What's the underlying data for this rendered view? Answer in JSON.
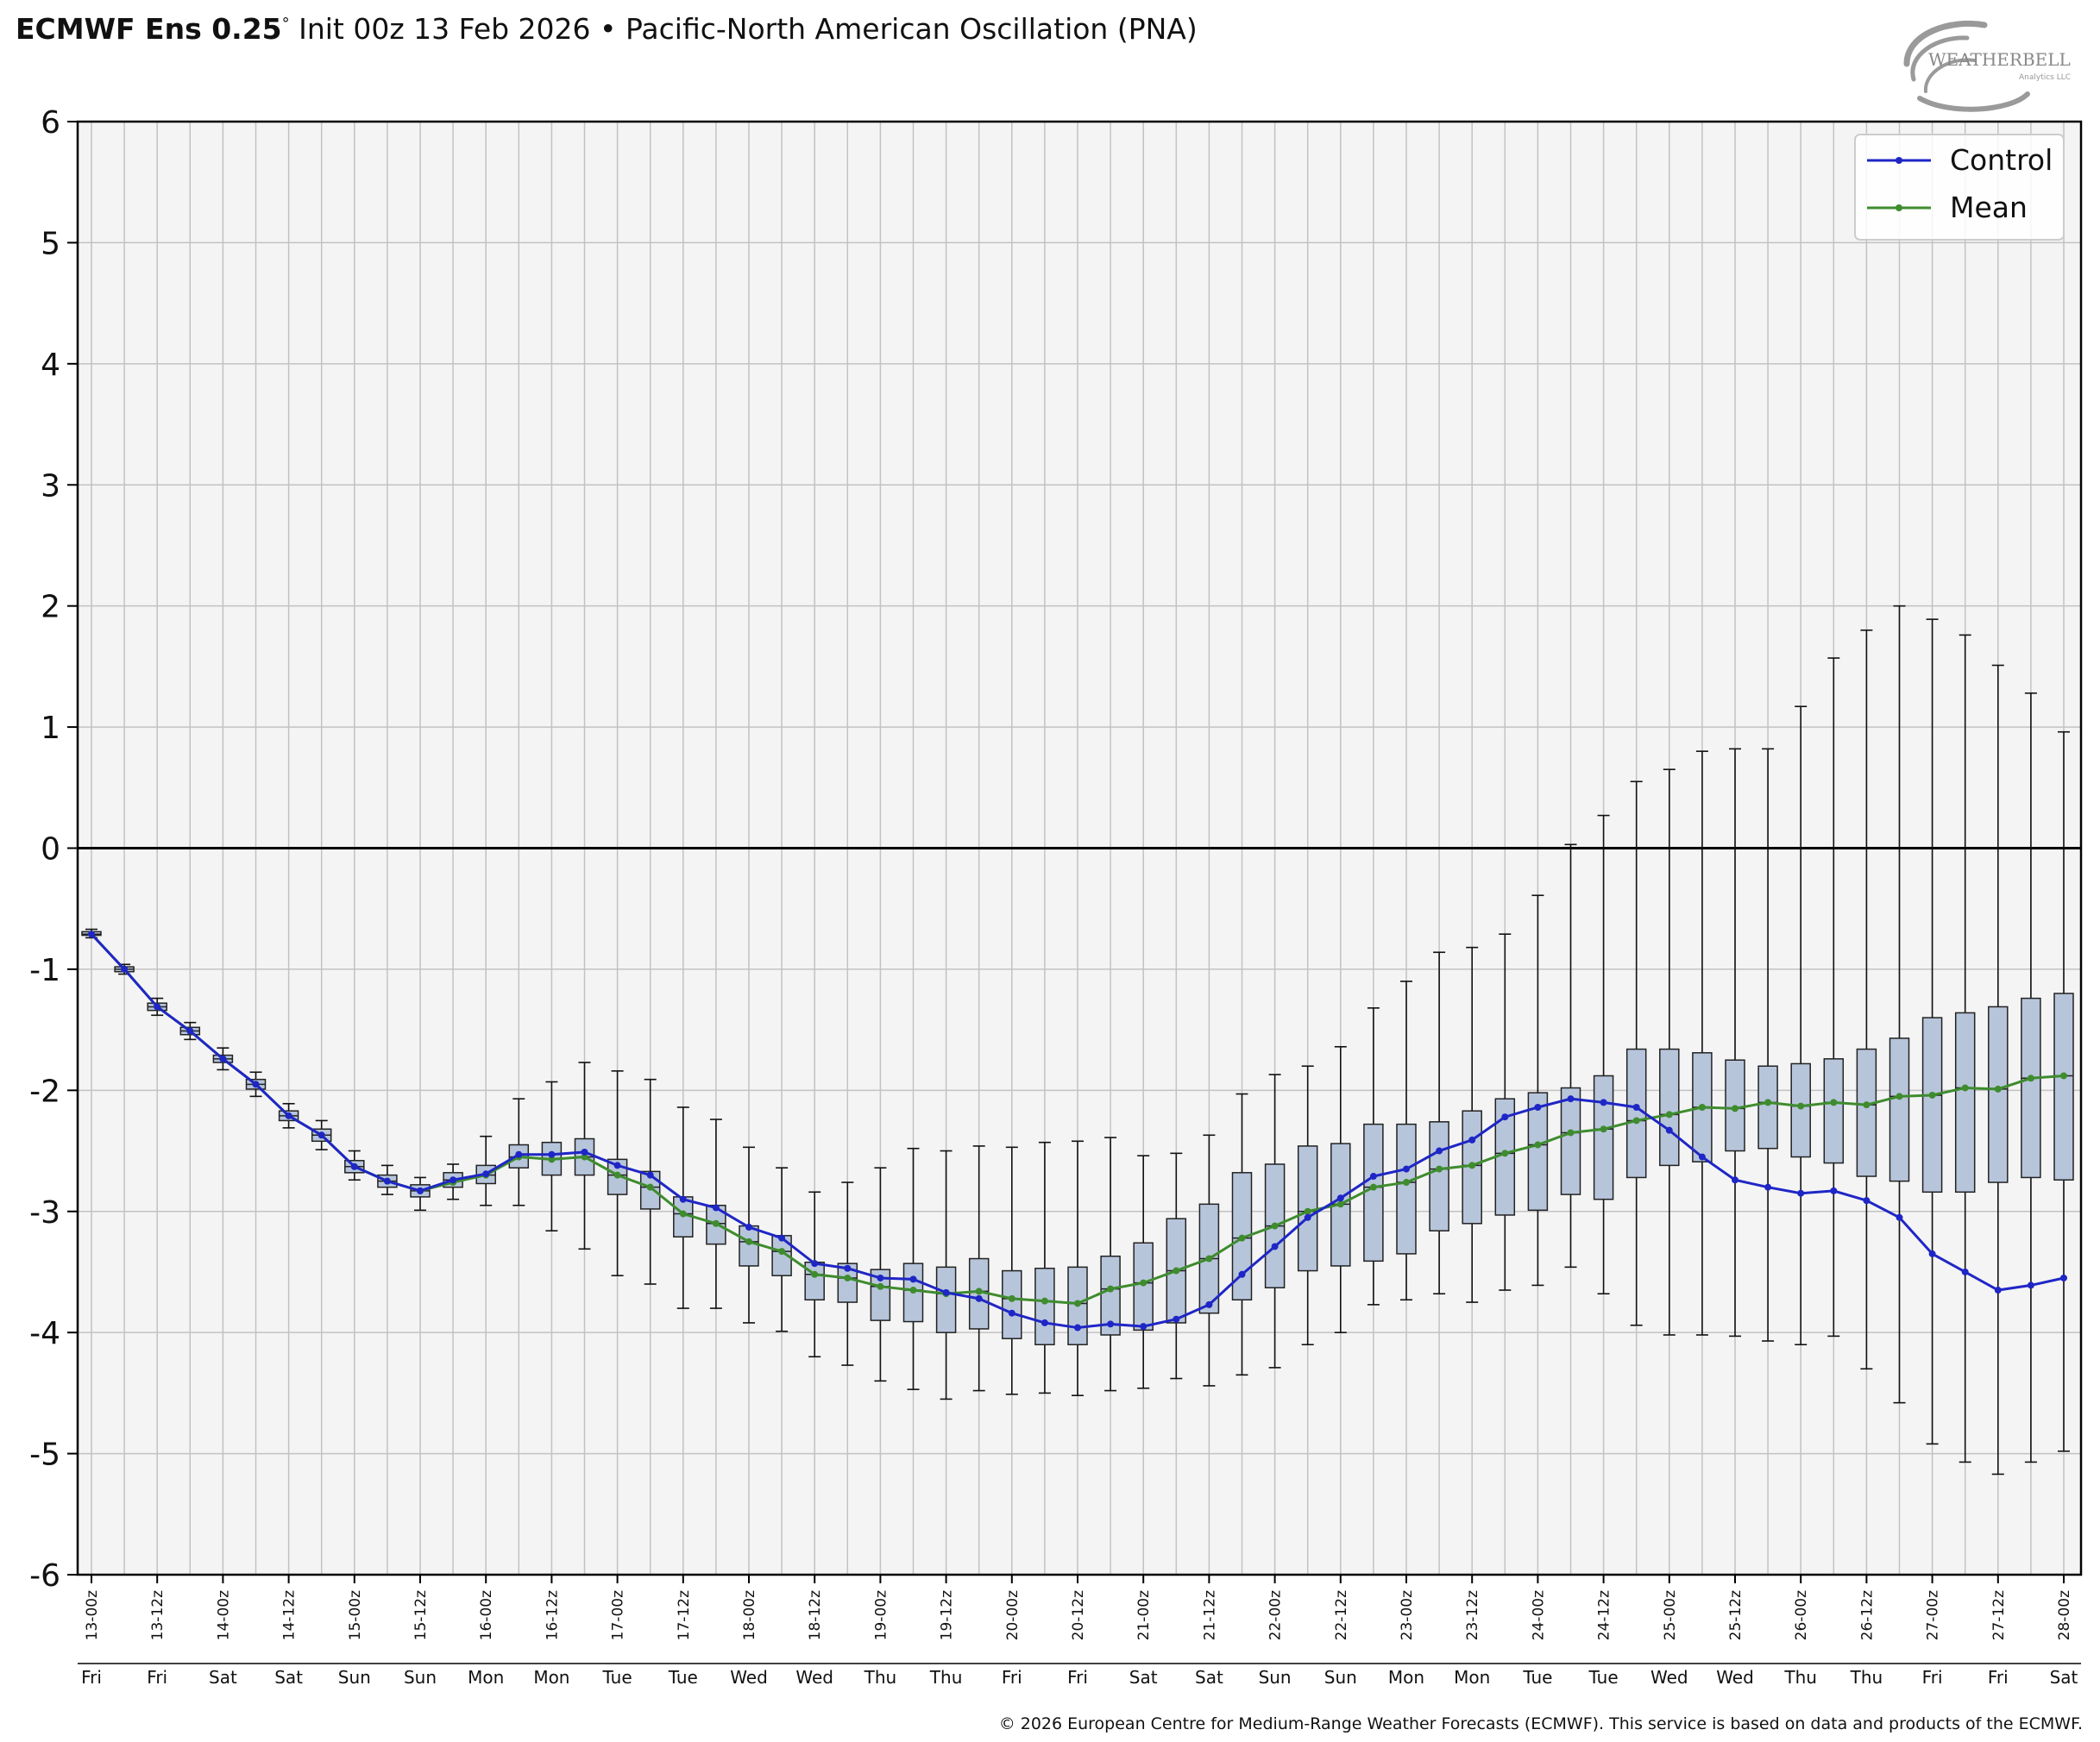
{
  "header": {
    "title_bold": "ECMWF Ens 0.25",
    "title_deg": "°",
    "title_rest": " Init 00z 13 Feb 2026 • Pacific-North American Oscillation (PNA)"
  },
  "logo": {
    "text_main": "WEATHERBELL",
    "text_sub": "Analytics LLC"
  },
  "footer": {
    "copyright": "© 2026 European Centre for Medium-Range Weather Forecasts (ECMWF). This service is based on data and products of the ECMWF."
  },
  "colors": {
    "control": "#1f26c6",
    "mean": "#3e8c2e",
    "box_fill": "#b7c5db",
    "plot_bg": "#f4f4f4",
    "grid": "#c2c2c2"
  },
  "chart_data": {
    "type": "line",
    "ylim": [
      -6,
      6
    ],
    "yticks": [
      6,
      5,
      4,
      3,
      2,
      1,
      0,
      -1,
      -2,
      -3,
      -4,
      -5,
      -6
    ],
    "grid": true,
    "legend_position": "top-right",
    "x_tick_labels": [
      "13-00z",
      "13-12z",
      "14-00z",
      "14-12z",
      "15-00z",
      "15-12z",
      "16-00z",
      "16-12z",
      "17-00z",
      "17-12z",
      "18-00z",
      "18-12z",
      "19-00z",
      "19-12z",
      "20-00z",
      "20-12z",
      "21-00z",
      "21-12z",
      "22-00z",
      "22-12z",
      "23-00z",
      "23-12z",
      "24-00z",
      "24-12z",
      "25-00z",
      "25-12z",
      "26-00z",
      "26-12z",
      "27-00z",
      "27-12z",
      "28-00z"
    ],
    "x_day_labels": [
      "Fri",
      "Fri",
      "Sat",
      "Sat",
      "Sun",
      "Sun",
      "Mon",
      "Mon",
      "Tue",
      "Tue",
      "Wed",
      "Wed",
      "Thu",
      "Thu",
      "Fri",
      "Fri",
      "Sat",
      "Sat",
      "Sun",
      "Sun",
      "Mon",
      "Mon",
      "Tue",
      "Tue",
      "Wed",
      "Wed",
      "Thu",
      "Thu",
      "Fri",
      "Fri",
      "Sat"
    ],
    "series": [
      {
        "name": "Control",
        "values": [
          -0.71,
          -1.0,
          -1.31,
          -1.51,
          -1.74,
          -1.95,
          -2.21,
          -2.37,
          -2.63,
          -2.75,
          -2.83,
          -2.74,
          -2.69,
          -2.53,
          -2.53,
          -2.51,
          -2.62,
          -2.7,
          -2.9,
          -2.97,
          -3.13,
          -3.22,
          -3.43,
          -3.47,
          -3.55,
          -3.56,
          -3.67,
          -3.72,
          -3.84,
          -3.92,
          -3.96,
          -3.93,
          -3.95,
          -3.89,
          -3.77,
          -3.52,
          -3.29,
          -3.05,
          -2.89,
          -2.71,
          -2.65,
          -2.5,
          -2.41,
          -2.22,
          -2.14,
          -2.07,
          -2.1,
          -2.14,
          -2.33,
          -2.55,
          -2.74,
          -2.8,
          -2.85,
          -2.83,
          -2.91,
          -3.05,
          -3.35,
          -3.5,
          -3.65,
          -3.61,
          -3.55
        ]
      },
      {
        "name": "Mean",
        "values": [
          -0.71,
          -1.0,
          -1.31,
          -1.51,
          -1.74,
          -1.95,
          -2.21,
          -2.37,
          -2.63,
          -2.75,
          -2.83,
          -2.76,
          -2.7,
          -2.55,
          -2.57,
          -2.55,
          -2.7,
          -2.8,
          -3.02,
          -3.1,
          -3.25,
          -3.33,
          -3.52,
          -3.55,
          -3.62,
          -3.65,
          -3.68,
          -3.66,
          -3.72,
          -3.74,
          -3.76,
          -3.64,
          -3.59,
          -3.49,
          -3.39,
          -3.22,
          -3.12,
          -3.0,
          -2.94,
          -2.8,
          -2.76,
          -2.65,
          -2.62,
          -2.52,
          -2.45,
          -2.35,
          -2.32,
          -2.25,
          -2.2,
          -2.14,
          -2.15,
          -2.1,
          -2.13,
          -2.1,
          -2.12,
          -2.05,
          -2.04,
          -1.98,
          -1.99,
          -1.9,
          -1.88
        ]
      }
    ],
    "boxes": [
      [
        -0.74,
        -0.72,
        -0.71,
        -0.69,
        -0.67
      ],
      [
        -1.04,
        -1.02,
        -1.0,
        -0.98,
        -0.96
      ],
      [
        -1.38,
        -1.34,
        -1.31,
        -1.28,
        -1.24
      ],
      [
        -1.58,
        -1.54,
        -1.51,
        -1.48,
        -1.44
      ],
      [
        -1.83,
        -1.77,
        -1.74,
        -1.71,
        -1.65
      ],
      [
        -2.05,
        -1.99,
        -1.95,
        -1.91,
        -1.85
      ],
      [
        -2.31,
        -2.25,
        -2.21,
        -2.17,
        -2.11
      ],
      [
        -2.49,
        -2.42,
        -2.37,
        -2.32,
        -2.25
      ],
      [
        -2.74,
        -2.68,
        -2.63,
        -2.58,
        -2.5
      ],
      [
        -2.86,
        -2.8,
        -2.75,
        -2.7,
        -2.62
      ],
      [
        -2.99,
        -2.88,
        -2.83,
        -2.78,
        -2.72
      ],
      [
        -2.9,
        -2.8,
        -2.74,
        -2.68,
        -2.61
      ],
      [
        -2.95,
        -2.77,
        -2.7,
        -2.62,
        -2.38
      ],
      [
        -2.95,
        -2.64,
        -2.55,
        -2.45,
        -2.07
      ],
      [
        -3.16,
        -2.7,
        -2.57,
        -2.43,
        -1.93
      ],
      [
        -3.31,
        -2.7,
        -2.55,
        -2.4,
        -1.77
      ],
      [
        -3.53,
        -2.86,
        -2.7,
        -2.57,
        -1.84
      ],
      [
        -3.6,
        -2.98,
        -2.8,
        -2.67,
        -1.91
      ],
      [
        -3.8,
        -3.21,
        -3.02,
        -2.88,
        -2.14
      ],
      [
        -3.8,
        -3.27,
        -3.1,
        -2.95,
        -2.24
      ],
      [
        -3.92,
        -3.45,
        -3.25,
        -3.12,
        -2.47
      ],
      [
        -3.99,
        -3.53,
        -3.33,
        -3.2,
        -2.64
      ],
      [
        -4.2,
        -3.73,
        -3.52,
        -3.42,
        -2.84
      ],
      [
        -4.27,
        -3.75,
        -3.55,
        -3.43,
        -2.76
      ],
      [
        -4.4,
        -3.9,
        -3.62,
        -3.48,
        -2.64
      ],
      [
        -4.47,
        -3.91,
        -3.65,
        -3.43,
        -2.48
      ],
      [
        -4.55,
        -4.0,
        -3.68,
        -3.46,
        -2.5
      ],
      [
        -4.48,
        -3.97,
        -3.66,
        -3.39,
        -2.46
      ],
      [
        -4.51,
        -4.05,
        -3.72,
        -3.49,
        -2.47
      ],
      [
        -4.5,
        -4.1,
        -3.74,
        -3.47,
        -2.43
      ],
      [
        -4.52,
        -4.1,
        -3.76,
        -3.46,
        -2.42
      ],
      [
        -4.48,
        -4.02,
        -3.64,
        -3.37,
        -2.39
      ],
      [
        -4.46,
        -3.98,
        -3.59,
        -3.26,
        -2.54
      ],
      [
        -4.38,
        -3.92,
        -3.49,
        -3.06,
        -2.52
      ],
      [
        -4.44,
        -3.84,
        -3.39,
        -2.94,
        -2.37
      ],
      [
        -4.35,
        -3.73,
        -3.22,
        -2.68,
        -2.03
      ],
      [
        -4.29,
        -3.63,
        -3.12,
        -2.61,
        -1.87
      ],
      [
        -4.1,
        -3.49,
        -3.0,
        -2.46,
        -1.8
      ],
      [
        -4.0,
        -3.45,
        -2.94,
        -2.44,
        -1.64
      ],
      [
        -3.77,
        -3.41,
        -2.8,
        -2.28,
        -1.32
      ],
      [
        -3.73,
        -3.35,
        -2.76,
        -2.28,
        -1.1
      ],
      [
        -3.68,
        -3.16,
        -2.65,
        -2.26,
        -0.86
      ],
      [
        -3.75,
        -3.1,
        -2.62,
        -2.17,
        -0.82
      ],
      [
        -3.65,
        -3.03,
        -2.52,
        -2.07,
        -0.71
      ],
      [
        -3.61,
        -2.99,
        -2.45,
        -2.02,
        -0.39
      ],
      [
        -3.46,
        -2.86,
        -2.35,
        -1.98,
        0.03
      ],
      [
        -3.68,
        -2.9,
        -2.32,
        -1.88,
        0.27
      ],
      [
        -3.94,
        -2.72,
        -2.25,
        -1.66,
        0.55
      ],
      [
        -4.02,
        -2.62,
        -2.2,
        -1.66,
        0.65
      ],
      [
        -4.02,
        -2.59,
        -2.14,
        -1.69,
        0.8
      ],
      [
        -4.03,
        -2.5,
        -2.15,
        -1.75,
        0.82
      ],
      [
        -4.07,
        -2.48,
        -2.1,
        -1.8,
        0.82
      ],
      [
        -4.1,
        -2.55,
        -2.13,
        -1.78,
        1.17
      ],
      [
        -4.03,
        -2.6,
        -2.1,
        -1.74,
        1.57
      ],
      [
        -4.3,
        -2.71,
        -2.12,
        -1.66,
        1.8
      ],
      [
        -4.58,
        -2.75,
        -2.05,
        -1.57,
        2.0
      ],
      [
        -4.92,
        -2.84,
        -2.04,
        -1.4,
        1.89
      ],
      [
        -5.07,
        -2.84,
        -1.98,
        -1.36,
        1.76
      ],
      [
        -5.17,
        -2.76,
        -1.99,
        -1.31,
        1.51
      ],
      [
        -5.07,
        -2.72,
        -1.9,
        -1.24,
        1.28
      ],
      [
        -4.98,
        -2.74,
        -1.88,
        -1.2,
        0.96
      ]
    ]
  }
}
